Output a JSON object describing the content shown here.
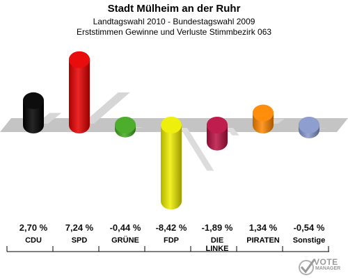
{
  "title": "Stadt Mülheim an der Ruhr",
  "subtitle1": "Landtagswahl 2010 - Bundestagswahl 2009",
  "subtitle2": "Erststimmen Gewinne und Verluste Stimmbezirk 063",
  "logo": {
    "line1": "VOTE",
    "line2": "MANAGER"
  },
  "chart_data": {
    "type": "bar",
    "title": "Stadt Mülheim an der Ruhr",
    "categories": [
      "CDU",
      "SPD",
      "GRÜNE",
      "FDP",
      "DIE LINKE",
      "PIRATEN",
      "Sonstige"
    ],
    "values": [
      2.7,
      7.24,
      -0.44,
      -8.42,
      -1.89,
      1.34,
      -0.54
    ],
    "value_labels": [
      "2,70 %",
      "7,24 %",
      "-0,44 %",
      "-8,42 %",
      "-1,89 %",
      "1,34 %",
      "-0,54 %"
    ],
    "label_lines": [
      [
        "CDU"
      ],
      [
        "SPD"
      ],
      [
        "GRÜNE"
      ],
      [
        "FDP"
      ],
      [
        "DIE",
        "LINKE"
      ],
      [
        "PIRATEN"
      ],
      [
        "Sonstige"
      ]
    ],
    "colors": [
      "#000000",
      "#e80000",
      "#44aa22",
      "#eeee00",
      "#bb1144",
      "#ff8800",
      "#8899cc"
    ],
    "baseline": 0,
    "xlabel": "",
    "ylabel": ""
  }
}
